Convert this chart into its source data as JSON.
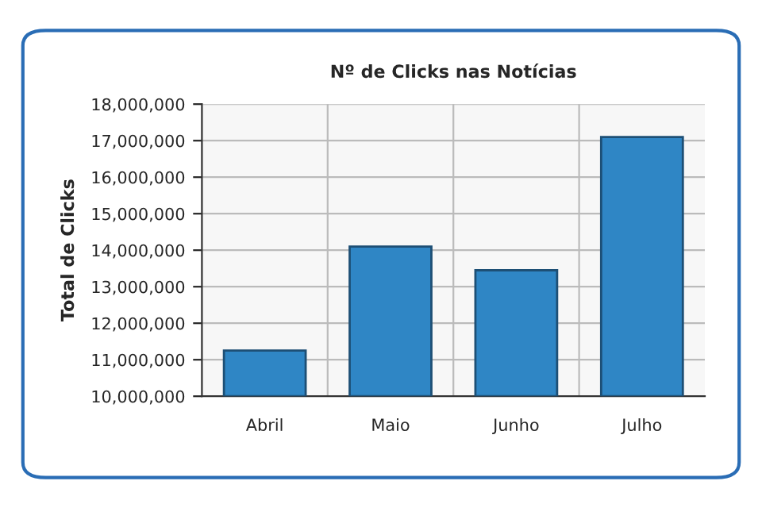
{
  "chart_data": {
    "type": "bar",
    "title": "Nº de Clicks nas Notícias",
    "ylabel": "Total de Clicks",
    "categories": [
      "Abril",
      "Maio",
      "Junho",
      "Julho"
    ],
    "values": [
      11250000,
      14100000,
      13450000,
      17100000
    ],
    "color": "#2f86c5",
    "ylim": [
      10000000,
      18000000
    ],
    "yticks": [
      {
        "value": 10000000,
        "label": "10,000,000"
      },
      {
        "value": 11000000,
        "label": "11,000,000"
      },
      {
        "value": 12000000,
        "label": "12,000,000"
      },
      {
        "value": 13000000,
        "label": "13,000,000"
      },
      {
        "value": 14000000,
        "label": "14,000,000"
      },
      {
        "value": 15000000,
        "label": "15,000,000"
      },
      {
        "value": 16000000,
        "label": "16,000,000"
      },
      {
        "value": 17000000,
        "label": "17,000,000"
      },
      {
        "value": 18000000,
        "label": "18,000,000"
      }
    ],
    "grid": true
  }
}
